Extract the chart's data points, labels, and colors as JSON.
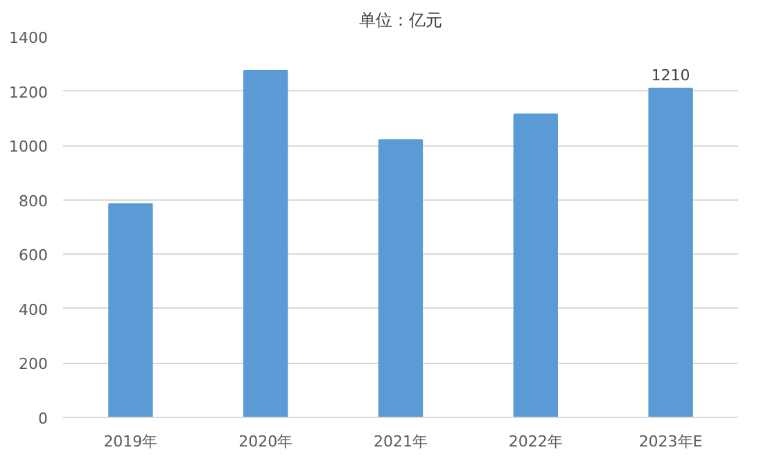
{
  "chart_data": {
    "type": "bar",
    "title": "单位：亿元",
    "categories": [
      "2019年",
      "2020年",
      "2021年",
      "2022年",
      "2023年E"
    ],
    "values": [
      785,
      1275,
      1020,
      1115,
      1210
    ],
    "value_labels": [
      null,
      null,
      null,
      null,
      "1210"
    ],
    "color": "#5b9bd5",
    "ylim": [
      0,
      1400
    ],
    "yticks": [
      0,
      200,
      400,
      600,
      800,
      1000,
      1200,
      1400
    ],
    "grid": "y"
  }
}
